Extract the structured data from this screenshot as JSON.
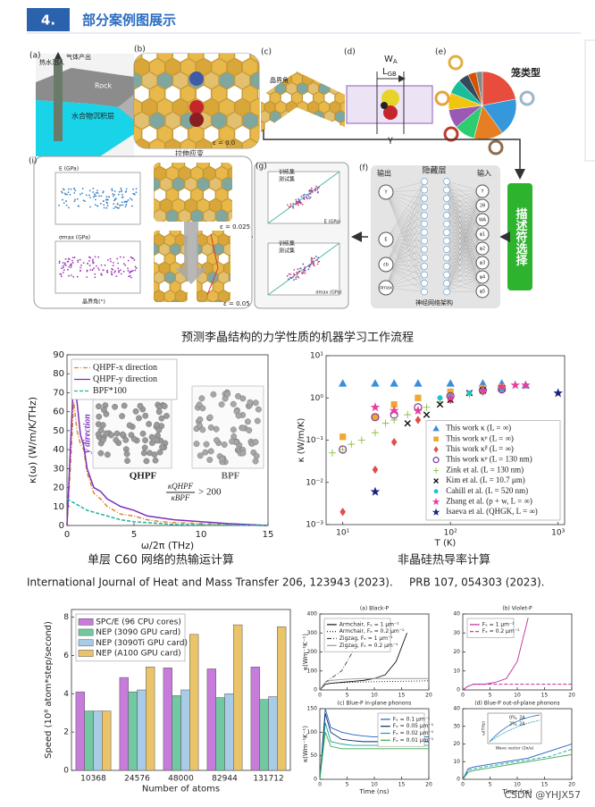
{
  "header": {
    "number": "4.",
    "title": "部分案例图展示"
  },
  "workflow": {
    "panel_labels": [
      "(a)",
      "(b)",
      "(c)",
      "(d)",
      "(e)",
      "(f)",
      "(g)",
      "(i)"
    ],
    "a": {
      "inject": "热水注入",
      "produce": "气体产出",
      "rock": "Rock",
      "layer": "水合物沉积层"
    },
    "b": {
      "strain": "拉伸应变",
      "epsilon": "ε = 0.0"
    },
    "c": {
      "angle": "晶界角"
    },
    "d": {
      "w": "W",
      "w_sub": "A",
      "l": "L",
      "l_sub": "GB",
      "gamma": "γ"
    },
    "e": {
      "cage": "笼类型"
    },
    "f": {
      "output": "输出",
      "hidden": "隐藏层",
      "input": "输入",
      "arch": "神经网络架构",
      "out_nodes": [
        "Y",
        "E",
        "εb",
        "σmax"
      ],
      "in_nodes": [
        "Y",
        "2θ",
        "WA",
        "φ1",
        "φ2",
        "φ3",
        "φ4",
        "φ5"
      ]
    },
    "selector": "描述符选择",
    "g": {
      "train": "训练集",
      "test": "测试集",
      "xlabel_top": "E (GPa)",
      "xlabel_bottom": "σmax (GPa)"
    },
    "i": {
      "ylabel_top": "E (GPa)",
      "ylabel_bottom": "σmax (GPa)",
      "xlabel": "晶界角(°)"
    },
    "strain_labels": [
      "ε = 0.025",
      "ε = 0.05"
    ]
  },
  "captions": {
    "workflow": "预测李晶结构的力学性质的机器学习工作流程",
    "c60": "单层 C60 网络的热输运计算",
    "silicon": "非晶硅热导率计算"
  },
  "citations": [
    "International Journal of Heat and Mass Transfer 206, 123943 (2023).",
    "PRB 107, 054303 (2023)."
  ],
  "watermark": "CSDN @YHJX57",
  "chart_data": [
    {
      "type": "line",
      "xlabel": "ω/2π (THz)",
      "ylabel": "κ(ω) (W/m/K/THz)",
      "xlim": [
        0,
        15
      ],
      "ylim": [
        0,
        90
      ],
      "xticks": [
        0,
        5,
        10,
        15
      ],
      "yticks": [
        0,
        10,
        20,
        30,
        40,
        50,
        60,
        70,
        80,
        90
      ],
      "legend": "upper left",
      "x": [
        0,
        0.25,
        0.5,
        0.75,
        1,
        1.25,
        1.5,
        2,
        2.5,
        3,
        3.5,
        4,
        5,
        6,
        7,
        8,
        10,
        12,
        15
      ],
      "series": [
        {
          "name": "QHPF-x direction",
          "color": "#e08a2c",
          "dash": "dashdot",
          "values": [
            0,
            30,
            65,
            50,
            43,
            40,
            28,
            17,
            14,
            10,
            8,
            6,
            5,
            3,
            2,
            1.5,
            1,
            0.5,
            0
          ]
        },
        {
          "name": "QHPF-y direction",
          "color": "#7b2fbe",
          "dash": "solid",
          "values": [
            0,
            40,
            80,
            65,
            48,
            42,
            30,
            20,
            18,
            14,
            12,
            10,
            8,
            5,
            4,
            3,
            2,
            1,
            0
          ]
        },
        {
          "name": "BPF*100",
          "color": "#1ab5a3",
          "dash": "dashed",
          "values": [
            14,
            13,
            12,
            11,
            10,
            9,
            8,
            7,
            6,
            5,
            4,
            3,
            2,
            1.5,
            1,
            0.5,
            0.3,
            0.2,
            0
          ]
        }
      ],
      "annotations": {
        "x_direction": "x direction",
        "y_direction": "y direction",
        "qhpf": "QHPF",
        "bpf": "BPF",
        "ratio_num": "κQHPF",
        "ratio_den": "κBPF",
        "ratio": "> 200"
      }
    },
    {
      "type": "scatter",
      "xlabel": "T (K)",
      "ylabel": "κ (W/m/K)",
      "xlog": true,
      "ylog": true,
      "xlim": [
        7,
        1150
      ],
      "ylim": [
        0.001,
        10
      ],
      "xticks": [
        {
          "value": 10,
          "label": "10¹"
        },
        {
          "value": 100,
          "label": "10²"
        },
        {
          "value": 1000,
          "label": "10³"
        }
      ],
      "yticks": [
        {
          "value": 0.001,
          "label": "10⁻³"
        },
        {
          "value": 0.01,
          "label": "10⁻²"
        },
        {
          "value": 0.1,
          "label": "10⁻¹"
        },
        {
          "value": 1,
          "label": "10⁰"
        },
        {
          "value": 10,
          "label": "10¹"
        }
      ],
      "legend": "lower right",
      "series": [
        {
          "name": "This work κ (L = ∞)",
          "color": "#3a8fd9",
          "marker": "triangle",
          "x": [
            10,
            20,
            30,
            50,
            100,
            200,
            300,
            500
          ],
          "values": [
            2.2,
            2.2,
            2.2,
            2.2,
            2.2,
            2.2,
            2.2,
            2.0
          ]
        },
        {
          "name": "This work κᵖ (L = ∞)",
          "color": "#f0a830",
          "marker": "square",
          "x": [
            10,
            20,
            30,
            50,
            100,
            200,
            300
          ],
          "values": [
            0.12,
            0.35,
            0.7,
            1.0,
            1.4,
            1.7,
            1.8
          ]
        },
        {
          "name": "This work κ̃ᵖ (L = ∞)",
          "color": "#e0504a",
          "marker": "diamond",
          "x": [
            10,
            20,
            30,
            50,
            100,
            200,
            300
          ],
          "values": [
            0.002,
            0.02,
            0.09,
            0.3,
            0.9,
            1.4,
            1.6
          ]
        },
        {
          "name": "This work κᵖ (L = 130 nm)",
          "color": "#7d3c98",
          "marker": "circle",
          "x": [
            10,
            20,
            30,
            50,
            100,
            200,
            300
          ],
          "values": [
            0.06,
            0.35,
            0.4,
            0.6,
            1.1,
            1.5,
            1.6
          ]
        },
        {
          "name": "Zink et al. (L = 130 nm)",
          "color": "#7cb82f",
          "marker": "plus",
          "x": [
            8,
            10,
            12,
            15,
            20,
            25,
            30,
            40,
            50,
            60,
            80,
            100,
            150,
            200
          ],
          "values": [
            0.05,
            0.06,
            0.08,
            0.1,
            0.15,
            0.25,
            0.3,
            0.4,
            0.5,
            0.6,
            0.8,
            1.0,
            1.2,
            1.4
          ]
        },
        {
          "name": "Kim et al. (L = 10.7 μm)",
          "color": "#111111",
          "marker": "x",
          "x": [
            40,
            60,
            80,
            100,
            150,
            200,
            300
          ],
          "values": [
            0.25,
            0.4,
            0.7,
            0.9,
            1.3,
            1.5,
            1.7
          ]
        },
        {
          "name": "Cahill et al. (L = 520 nm)",
          "color": "#20c0d0",
          "marker": "dot",
          "x": [
            80,
            100,
            150,
            200,
            300
          ],
          "values": [
            1.0,
            1.1,
            1.3,
            1.5,
            1.6
          ]
        },
        {
          "name": "Zhang et al. (p + w, L = ∞)",
          "color": "#e83ea0",
          "marker": "star",
          "x": [
            20,
            30,
            50,
            100,
            200,
            300,
            400,
            500
          ],
          "values": [
            0.6,
            0.5,
            0.5,
            1.0,
            1.5,
            1.8,
            2.0,
            2.0
          ]
        },
        {
          "name": "Isaeva et al. (QHGK, L = ∞)",
          "color": "#1a237e",
          "marker": "star",
          "x": [
            20,
            1000
          ],
          "values": [
            0.006,
            1.3
          ]
        }
      ]
    },
    {
      "type": "bar",
      "xlabel": "Number of atoms",
      "ylabel": "Speed (10⁸ atom*step/second)",
      "categories": [
        "10368",
        "24576",
        "48000",
        "82944",
        "131712"
      ],
      "ylim": [
        0,
        8.4
      ],
      "yticks": [
        0,
        2,
        4,
        6,
        8
      ],
      "legend": "upper left",
      "series": [
        {
          "name": "SPC/E (96 CPU cores)",
          "color": "#c77cdb",
          "values": [
            4.1,
            4.85,
            5.35,
            5.3,
            5.4
          ]
        },
        {
          "name": "NEP (3090 GPU card)",
          "color": "#70c9a0",
          "values": [
            3.1,
            4.1,
            3.9,
            3.8,
            3.7
          ]
        },
        {
          "name": "NEP (3090Ti GPU card)",
          "color": "#a8cce8",
          "values": [
            3.1,
            4.2,
            4.2,
            4.0,
            3.85
          ]
        },
        {
          "name": "NEP (A100 GPU card)",
          "color": "#e9c46a",
          "values": [
            3.1,
            5.4,
            7.1,
            7.6,
            7.5
          ]
        }
      ]
    },
    {
      "type": "line",
      "title": "(a) Black-P",
      "ylabel": "κ(Wm⁻¹K⁻¹)",
      "xlim": [
        0,
        20
      ],
      "ylim": [
        0,
        400
      ],
      "xticks": [
        0,
        5,
        10,
        15,
        20
      ],
      "yticks": [
        0,
        100,
        200,
        300,
        400
      ],
      "legend": "upper left",
      "x": [
        0,
        1,
        2,
        4,
        6,
        8,
        10,
        12,
        14,
        16,
        18,
        20
      ],
      "series": [
        {
          "name": "Armchair, Fₑ = 1 μm⁻¹",
          "color": "#111111",
          "dash": "solid",
          "values": [
            0,
            30,
            35,
            40,
            45,
            50,
            60,
            80,
            150,
            300,
            null,
            null
          ]
        },
        {
          "name": "Armchair, Fₑ = 0.2 μm⁻¹",
          "color": "#111111",
          "dash": "dotted",
          "values": [
            0,
            30,
            35,
            38,
            40,
            42,
            43,
            44,
            45,
            46,
            47,
            48
          ]
        },
        {
          "name": "Zigzag, Fₑ = 1 μm⁻¹",
          "color": "#444444",
          "dash": "dashdot",
          "values": [
            0,
            40,
            60,
            100,
            200,
            380,
            null,
            null,
            null,
            null,
            null,
            null
          ]
        },
        {
          "name": "Zigzag, Fₑ = 0.2 μm⁻¹",
          "color": "#999999",
          "dash": "solid",
          "values": [
            0,
            40,
            50,
            55,
            58,
            60,
            60,
            60,
            60,
            60,
            60,
            60
          ]
        }
      ]
    },
    {
      "type": "line",
      "title": "(b) Violet-P",
      "xlim": [
        0,
        20
      ],
      "ylim": [
        0,
        40
      ],
      "xticks": [
        0,
        5,
        10,
        15,
        20
      ],
      "yticks": [
        0,
        10,
        20,
        30,
        40
      ],
      "legend": "upper left",
      "x": [
        0,
        1,
        2,
        4,
        6,
        8,
        10,
        12,
        14,
        16,
        18,
        20
      ],
      "series": [
        {
          "name": "Fₑ = 1 μm⁻¹",
          "color": "#c0289e",
          "dash": "solid",
          "values": [
            0,
            2,
            3,
            3,
            4,
            6,
            15,
            38,
            null,
            null,
            null,
            null
          ]
        },
        {
          "name": "Fₑ = 0.2 μm⁻¹",
          "color": "#c0289e",
          "dash": "dashed",
          "values": [
            0,
            2,
            3,
            3,
            3,
            3,
            3,
            3,
            3,
            3,
            3,
            3
          ]
        }
      ]
    },
    {
      "type": "line",
      "title": "(c) Blue-P in-plane phonons",
      "ylabel": "κ(Wm⁻¹K⁻¹)",
      "xlabel": "Time (ns)",
      "xlim": [
        0,
        20
      ],
      "ylim": [
        0,
        150
      ],
      "xticks": [
        0,
        5,
        10,
        15,
        20
      ],
      "yticks": [
        0,
        50,
        100,
        150
      ],
      "legend": "upper right",
      "x": [
        0,
        1,
        2,
        4,
        6,
        8,
        10,
        12,
        14,
        16,
        18,
        20
      ],
      "series": [
        {
          "name": "Fₑ = 0.1 μm⁻¹",
          "color": "#1f5fbf",
          "dash": "solid",
          "values": [
            0,
            150,
            110,
            100,
            95,
            92,
            90,
            90,
            90,
            90,
            90,
            90
          ]
        },
        {
          "name": "Fₑ = 0.05 μm⁻¹",
          "color": "#0b2a6b",
          "dash": "solid",
          "values": [
            0,
            140,
            100,
            85,
            82,
            80,
            80,
            80,
            80,
            80,
            80,
            80
          ]
        },
        {
          "name": "Fₑ = 0.02 μm⁻¹",
          "color": "#1aa0a0",
          "dash": "solid",
          "values": [
            0,
            120,
            80,
            75,
            72,
            72,
            72,
            72,
            72,
            72,
            72,
            72
          ]
        },
        {
          "name": "Fₑ = 0.01 μm⁻¹",
          "color": "#3aa64a",
          "dash": "solid",
          "values": [
            0,
            100,
            70,
            65,
            65,
            65,
            65,
            65,
            65,
            65,
            65,
            65
          ]
        }
      ]
    },
    {
      "type": "line",
      "title": "(d) Blue-P out-of-plane phonons",
      "xlabel": "Time (ns)",
      "xlim": [
        0,
        20
      ],
      "ylim": [
        0,
        40
      ],
      "xticks": [
        0,
        5,
        10,
        15,
        20
      ],
      "yticks": [
        0,
        10,
        20,
        30,
        40
      ],
      "x": [
        0,
        1,
        2,
        4,
        6,
        8,
        10,
        12,
        14,
        16,
        18,
        20
      ],
      "series": [
        {
          "color": "#1f5fbf",
          "dash": "solid",
          "values": [
            0,
            6,
            7,
            8,
            9,
            10,
            11,
            12,
            14,
            16,
            18,
            20
          ]
        },
        {
          "color": "#1aa0a0",
          "dash": "dashed",
          "values": [
            0,
            5,
            6,
            7,
            8,
            9,
            10,
            11,
            12,
            13,
            15,
            17
          ]
        },
        {
          "color": "#3aa64a",
          "dash": "solid",
          "values": [
            0,
            4,
            5,
            6,
            7,
            8,
            9,
            10,
            11,
            12,
            13,
            14
          ]
        }
      ],
      "annotations": {
        "inset_legend": [
          "0%, 2A",
          "2%, 2A"
        ],
        "inset_xlabel": "Wave vector (2π/a)",
        "inset_ylabel": "ω(THz)"
      }
    }
  ]
}
